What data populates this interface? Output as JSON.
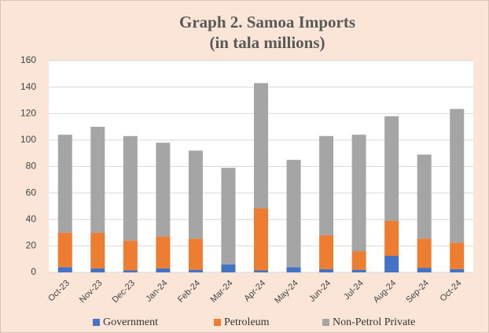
{
  "chart_data": {
    "type": "stacked_bar",
    "title": [
      "Graph 2. Samoa Imports",
      "(in tala millions)"
    ],
    "categories": [
      "Oct-23",
      "Nov-23",
      "Dec-23",
      "Jan-24",
      "Feb-24",
      "Mar-24",
      "Apr-24",
      "May-24",
      "Jun-24",
      "Jul-24",
      "Aug-24",
      "Sep-24",
      "Oct-24"
    ],
    "series": [
      {
        "name": "Government",
        "color": "#4472c4",
        "values": [
          4,
          3,
          1.5,
          3,
          2,
          6,
          1.5,
          4,
          2.5,
          2,
          12.5,
          3.5,
          2.5
        ]
      },
      {
        "name": "Petroleum",
        "color": "#ed7d31",
        "values": [
          26,
          27,
          22.5,
          24,
          23.5,
          0,
          47,
          0,
          25.5,
          14,
          26.5,
          22,
          20
        ]
      },
      {
        "name": "Non-Petrol Private",
        "color": "#a5a5a5",
        "values": [
          74,
          80,
          79,
          71,
          66.5,
          73,
          94.5,
          81,
          75,
          88,
          79,
          63.5,
          101
        ]
      }
    ],
    "ylim": [
      0,
      160
    ],
    "yticks": [
      0,
      20,
      40,
      60,
      80,
      100,
      120,
      140,
      160
    ],
    "grid": true,
    "legend": "bottom"
  }
}
